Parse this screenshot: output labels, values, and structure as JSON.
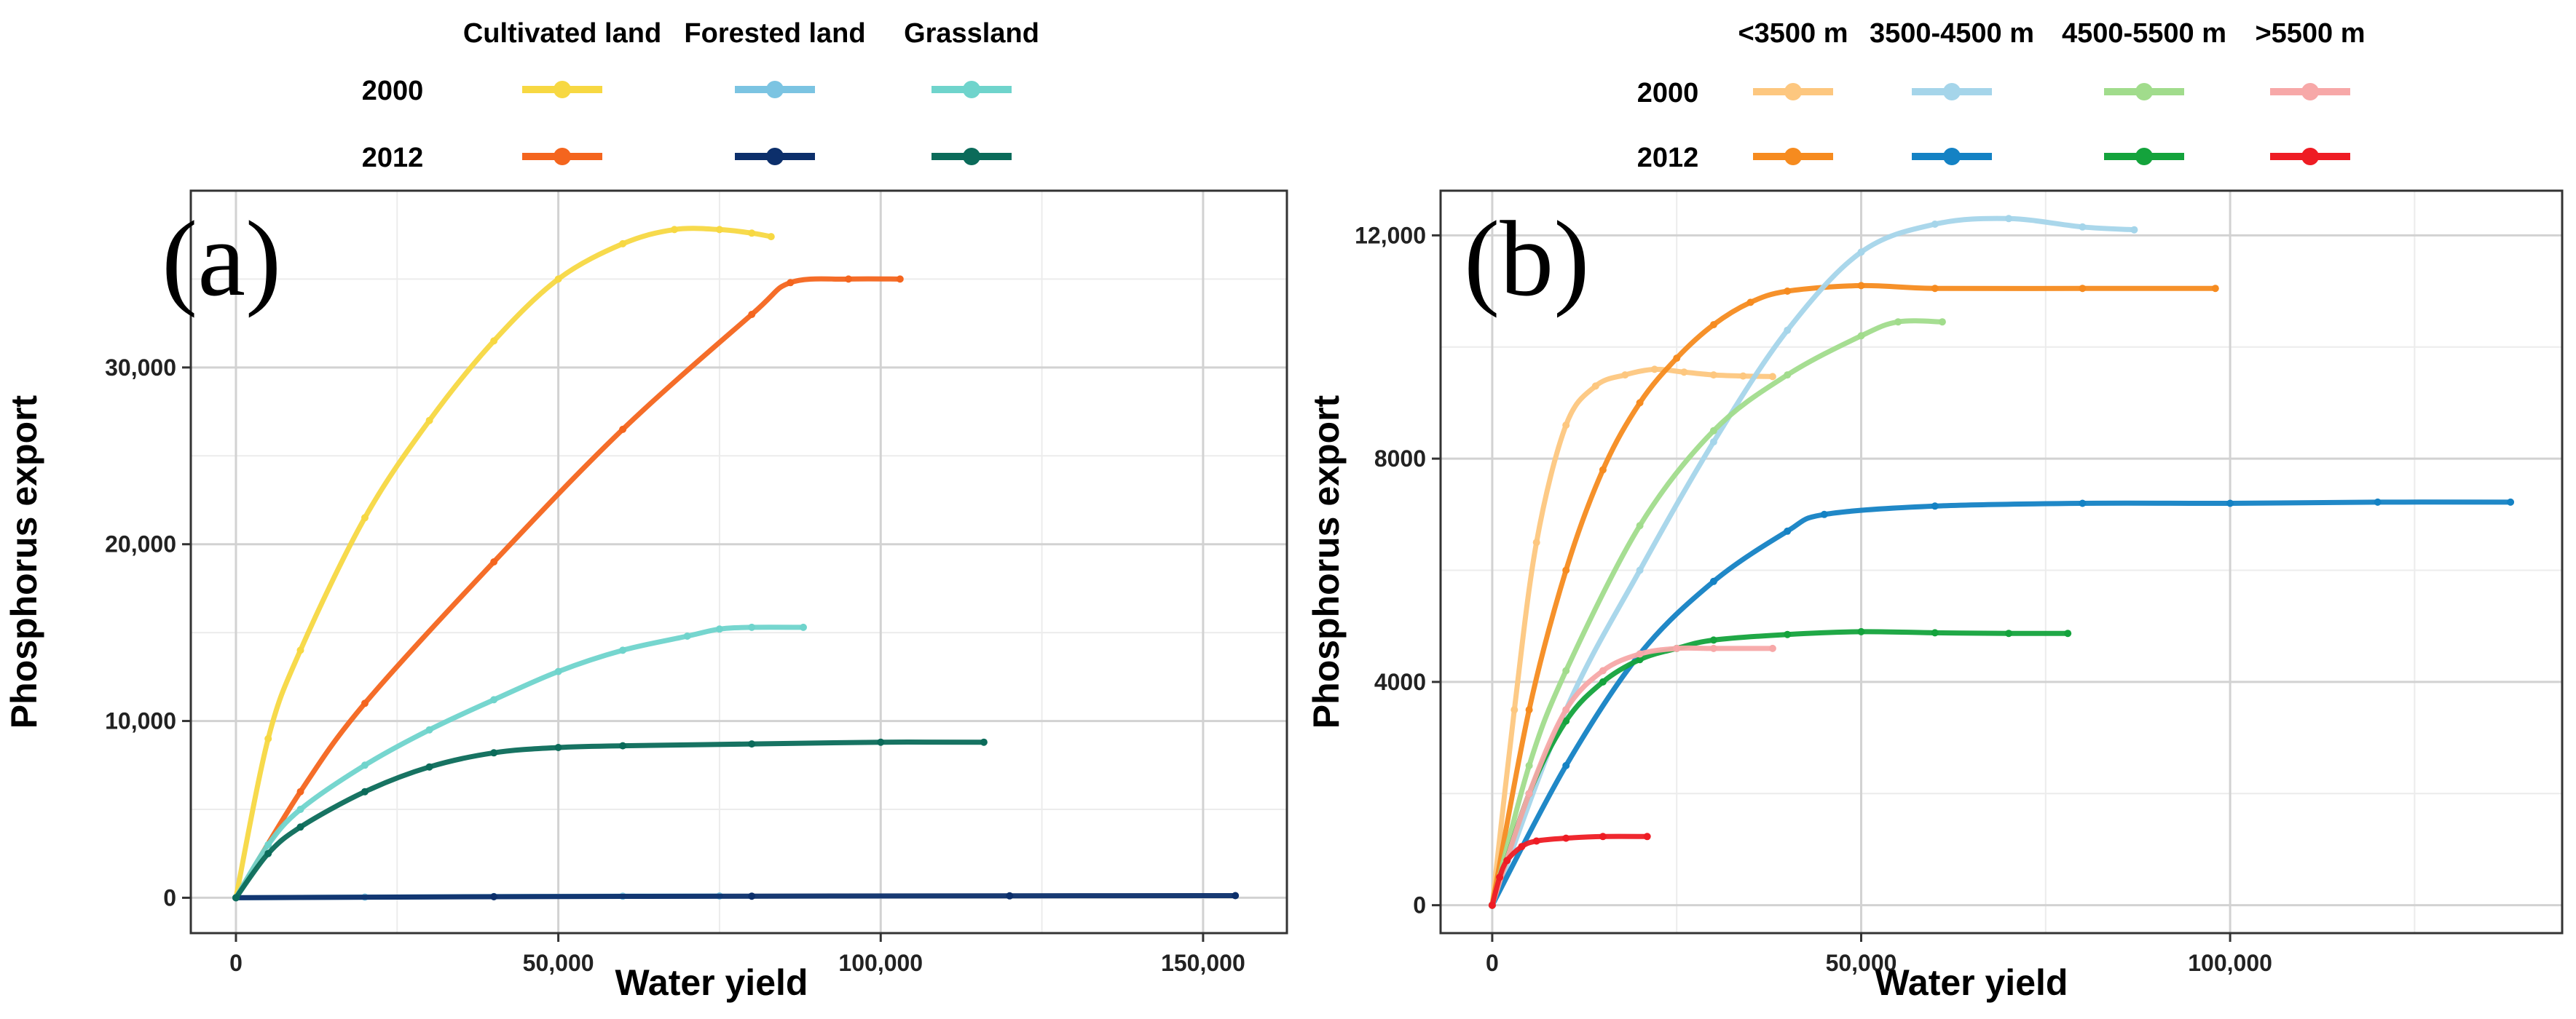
{
  "chart_data": [
    {
      "panel_label": "(a)",
      "type": "line",
      "title": "",
      "xlabel": "Water yield",
      "ylabel": "Phosphorus export",
      "xlim": [
        -7000,
        163000
      ],
      "ylim": [
        -2000,
        40000
      ],
      "x_ticks": [
        0,
        50000,
        100000,
        150000
      ],
      "x_tick_labels": [
        "0",
        "50,000",
        "100,000",
        "150,000"
      ],
      "y_ticks": [
        0,
        10000,
        20000,
        30000
      ],
      "y_tick_labels": [
        "0",
        "10,000",
        "20,000",
        "30,000"
      ],
      "grid": true,
      "legend": {
        "column_headers": [
          "Cultivated land",
          "Forested land",
          "Grassland"
        ],
        "row_labels": [
          "2000",
          "2012"
        ],
        "colors": [
          [
            "#f7d842",
            "#7bc4e2",
            "#6fd4cc"
          ],
          [
            "#f4651e",
            "#0c2f6b",
            "#0b6b5a"
          ]
        ]
      },
      "series": [
        {
          "name": "Cultivated land 2000",
          "color": "#f7d842",
          "x": [
            0,
            5000,
            10000,
            20000,
            30000,
            40000,
            50000,
            60000,
            68000,
            75000,
            80000,
            83000
          ],
          "y": [
            0,
            9000,
            14000,
            21500,
            27000,
            31500,
            35000,
            37000,
            37800,
            37800,
            37600,
            37400
          ]
        },
        {
          "name": "Cultivated land 2012",
          "color": "#f4651e",
          "x": [
            0,
            10000,
            20000,
            40000,
            60000,
            80000,
            86000,
            95000,
            103000
          ],
          "y": [
            0,
            6000,
            11000,
            19000,
            26500,
            33000,
            34800,
            35000,
            35000
          ]
        },
        {
          "name": "Forested land 2000",
          "color": "#7bc4e2",
          "x": [
            0,
            20000,
            40000,
            60000,
            75000
          ],
          "y": [
            0,
            40,
            70,
            90,
            100
          ]
        },
        {
          "name": "Forested land 2012",
          "color": "#0c2f6b",
          "x": [
            0,
            40000,
            80000,
            120000,
            155000
          ],
          "y": [
            0,
            60,
            90,
            110,
            120
          ]
        },
        {
          "name": "Grassland 2000",
          "color": "#6fd4cc",
          "x": [
            0,
            5000,
            10000,
            20000,
            30000,
            40000,
            50000,
            60000,
            70000,
            75000,
            80000,
            88000
          ],
          "y": [
            0,
            3000,
            5000,
            7500,
            9500,
            11200,
            12800,
            14000,
            14800,
            15200,
            15300,
            15300
          ]
        },
        {
          "name": "Grassland 2012",
          "color": "#0b6b5a",
          "x": [
            0,
            5000,
            10000,
            20000,
            30000,
            40000,
            50000,
            60000,
            80000,
            100000,
            116000
          ],
          "y": [
            0,
            2500,
            4000,
            6000,
            7400,
            8200,
            8500,
            8600,
            8700,
            8800,
            8800
          ]
        }
      ]
    },
    {
      "panel_label": "(b)",
      "type": "line",
      "title": "",
      "xlabel": "Water yield",
      "ylabel": "Phosphorus export",
      "xlim": [
        -7000,
        145000
      ],
      "ylim": [
        -500,
        12800
      ],
      "x_ticks": [
        0,
        50000,
        100000
      ],
      "x_tick_labels": [
        "0",
        "50,000",
        "100,000"
      ],
      "y_ticks": [
        0,
        4000,
        8000,
        12000
      ],
      "y_tick_labels": [
        "0",
        "4000",
        "8000",
        "12,000"
      ],
      "grid": true,
      "legend": {
        "column_headers": [
          "<3500 m",
          "3500-4500 m",
          "4500-5500 m",
          ">5500 m"
        ],
        "row_labels": [
          "2000",
          "2012"
        ],
        "colors": [
          [
            "#fdc77f",
            "#a5d5ea",
            "#a1dc8c",
            "#f7a8a8"
          ],
          [
            "#f68b1f",
            "#1482c4",
            "#14a33c",
            "#ee1c24"
          ]
        ]
      },
      "series": [
        {
          "name": "<3500 m 2000",
          "color": "#fdc77f",
          "x": [
            0,
            3000,
            6000,
            10000,
            14000,
            18000,
            22000,
            26000,
            30000,
            34000,
            38000
          ],
          "y": [
            0,
            3500,
            6500,
            8600,
            9300,
            9500,
            9600,
            9550,
            9500,
            9480,
            9470
          ]
        },
        {
          "name": "<3500 m 2012",
          "color": "#f68b1f",
          "x": [
            0,
            5000,
            10000,
            15000,
            20000,
            25000,
            30000,
            35000,
            40000,
            50000,
            60000,
            80000,
            98000
          ],
          "y": [
            0,
            3500,
            6000,
            7800,
            9000,
            9800,
            10400,
            10800,
            11000,
            11100,
            11050,
            11050,
            11050
          ]
        },
        {
          "name": "3500-4500 m 2000",
          "color": "#a5d5ea",
          "x": [
            0,
            10000,
            20000,
            30000,
            40000,
            50000,
            60000,
            70000,
            80000,
            87000
          ],
          "y": [
            0,
            3500,
            6000,
            8300,
            10300,
            11700,
            12200,
            12300,
            12150,
            12100
          ]
        },
        {
          "name": "3500-4500 m 2012",
          "color": "#1482c4",
          "x": [
            0,
            10000,
            20000,
            30000,
            40000,
            45000,
            60000,
            80000,
            100000,
            120000,
            138000
          ],
          "y": [
            0,
            2500,
            4500,
            5800,
            6700,
            7000,
            7150,
            7200,
            7200,
            7220,
            7220
          ]
        },
        {
          "name": "4500-5500 m 2000",
          "color": "#a1dc8c",
          "x": [
            0,
            5000,
            10000,
            20000,
            30000,
            40000,
            50000,
            55000,
            61000
          ],
          "y": [
            0,
            2500,
            4200,
            6800,
            8500,
            9500,
            10200,
            10450,
            10450
          ]
        },
        {
          "name": "4500-5500 m 2012",
          "color": "#14a33c",
          "x": [
            0,
            5000,
            10000,
            15000,
            20000,
            25000,
            30000,
            40000,
            50000,
            60000,
            70000,
            78000
          ],
          "y": [
            0,
            2000,
            3300,
            4000,
            4400,
            4600,
            4750,
            4850,
            4900,
            4880,
            4870,
            4870
          ]
        },
        {
          "name": ">5500 m 2000",
          "color": "#f7a8a8",
          "x": [
            0,
            5000,
            10000,
            15000,
            20000,
            25000,
            30000,
            38000
          ],
          "y": [
            0,
            2000,
            3500,
            4200,
            4500,
            4600,
            4600,
            4600
          ]
        },
        {
          "name": ">5500 m 2012",
          "color": "#ee1c24",
          "x": [
            0,
            1000,
            2000,
            4000,
            6000,
            10000,
            15000,
            21000
          ],
          "y": [
            0,
            500,
            800,
            1050,
            1150,
            1200,
            1230,
            1230
          ]
        }
      ]
    }
  ]
}
